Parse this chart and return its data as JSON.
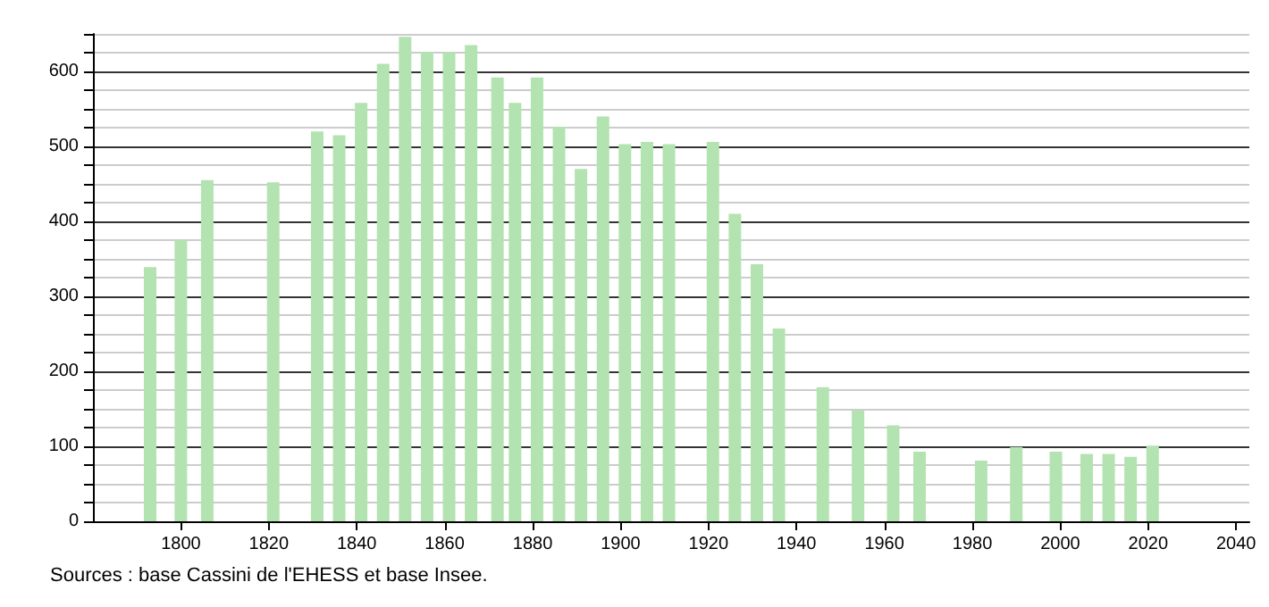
{
  "chart_data": {
    "type": "bar",
    "x": [
      1793,
      1800,
      1806,
      1821,
      1831,
      1836,
      1841,
      1846,
      1851,
      1856,
      1861,
      1866,
      1872,
      1876,
      1881,
      1886,
      1891,
      1896,
      1901,
      1906,
      1911,
      1921,
      1926,
      1931,
      1936,
      1946,
      1954,
      1962,
      1968,
      1982,
      1990,
      1999,
      2006,
      2011,
      2016,
      2021
    ],
    "values": [
      339,
      375,
      455,
      452,
      520,
      515,
      558,
      610,
      646,
      626,
      626,
      635,
      592,
      558,
      592,
      526,
      470,
      540,
      503,
      506,
      503,
      506,
      410,
      343,
      257,
      179,
      148,
      128,
      93,
      81,
      99,
      93,
      90,
      90,
      86,
      101
    ],
    "color": "#b3e3b0",
    "xlim": [
      1780,
      2043
    ],
    "xticks": [
      1800,
      1820,
      1840,
      1860,
      1880,
      1900,
      1920,
      1940,
      1960,
      1980,
      2000,
      2020,
      2040
    ],
    "ylim": [
      0,
      650
    ],
    "yticks": [
      0,
      {
        "value": 25,
        "label": null
      },
      {
        "value": 50,
        "label": null
      },
      {
        "value": 75,
        "label": null
      },
      100,
      {
        "value": 125,
        "label": null
      },
      {
        "value": 150,
        "label": null
      },
      {
        "value": 175,
        "label": null
      },
      200,
      {
        "value": 225,
        "label": null
      },
      {
        "value": 250,
        "label": null
      },
      {
        "value": 275,
        "label": null
      },
      300,
      {
        "value": 325,
        "label": null
      },
      {
        "value": 350,
        "label": null
      },
      {
        "value": 375,
        "label": null
      },
      400,
      {
        "value": 425,
        "label": null
      },
      {
        "value": 450,
        "label": null
      },
      {
        "value": 475,
        "label": null
      },
      500,
      {
        "value": 525,
        "label": null
      },
      {
        "value": 550,
        "label": null
      },
      {
        "value": 575,
        "label": null
      },
      600,
      {
        "value": 625,
        "label": null
      },
      {
        "value": 650,
        "label": null
      }
    ],
    "grid": "y",
    "annotations": [
      "Sources : base Cassini de l'EHESS et base Insee."
    ]
  }
}
